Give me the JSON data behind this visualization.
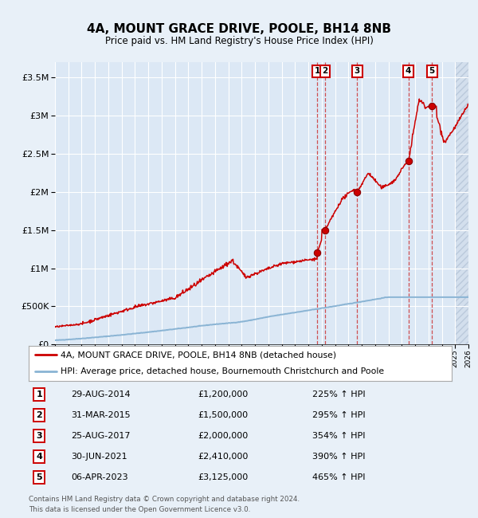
{
  "title": "4A, MOUNT GRACE DRIVE, POOLE, BH14 8NB",
  "subtitle": "Price paid vs. HM Land Registry's House Price Index (HPI)",
  "legend_house": "4A, MOUNT GRACE DRIVE, POOLE, BH14 8NB (detached house)",
  "legend_hpi": "HPI: Average price, detached house, Bournemouth Christchurch and Poole",
  "footer1": "Contains HM Land Registry data © Crown copyright and database right 2024.",
  "footer2": "This data is licensed under the Open Government Licence v3.0.",
  "xlim": [
    1995,
    2026
  ],
  "ylim": [
    0,
    3700000
  ],
  "yticks": [
    0,
    500000,
    1000000,
    1500000,
    2000000,
    2500000,
    3000000,
    3500000
  ],
  "ytick_labels": [
    "£0",
    "£500K",
    "£1M",
    "£1.5M",
    "£2M",
    "£2.5M",
    "£3M",
    "£3.5M"
  ],
  "transactions": [
    {
      "num": 1,
      "date": "29-AUG-2014",
      "price": 1200000,
      "pct": "225%",
      "x": 2014.66
    },
    {
      "num": 2,
      "date": "31-MAR-2015",
      "price": 1500000,
      "pct": "295%",
      "x": 2015.25
    },
    {
      "num": 3,
      "date": "25-AUG-2017",
      "price": 2000000,
      "pct": "354%",
      "x": 2017.66
    },
    {
      "num": 4,
      "date": "30-JUN-2021",
      "price": 2410000,
      "pct": "390%",
      "x": 2021.5
    },
    {
      "num": 5,
      "date": "06-APR-2023",
      "price": 3125000,
      "pct": "465%",
      "x": 2023.27
    }
  ],
  "bg_color": "#e8f0f8",
  "chart_bg": "#dce8f5",
  "grid_color": "#ffffff",
  "red_line_color": "#cc0000",
  "blue_line_color": "#8ab4d4",
  "marker_color": "#cc0000",
  "vline_color": "#cc3333",
  "box_color": "#cc0000"
}
